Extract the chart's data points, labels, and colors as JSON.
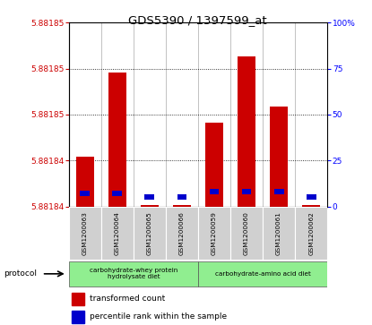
{
  "title": "GDS5390 / 1397599_at",
  "samples": [
    "GSM1200063",
    "GSM1200064",
    "GSM1200065",
    "GSM1200066",
    "GSM1200059",
    "GSM1200060",
    "GSM1200061",
    "GSM1200062"
  ],
  "transformed_counts": [
    5.881843,
    5.881848,
    5.8818401,
    5.8818401,
    5.881845,
    5.881849,
    5.881846,
    5.8818401
  ],
  "percentile_ranks": [
    7,
    7,
    5,
    5,
    8,
    8,
    8,
    5
  ],
  "y_min": 5.88184,
  "y_max": 5.881851,
  "pct_grid": [
    0,
    25,
    50,
    75,
    100
  ],
  "left_ytick_labels": [
    "5.88184",
    "5.88184",
    "5.88185",
    "5.88185",
    "5.88185"
  ],
  "right_ytick_labels": [
    "0",
    "25",
    "50",
    "75",
    "100%"
  ],
  "protocol_groups": [
    {
      "label": "carbohydrate-whey protein\nhydrolysate diet",
      "start": 0,
      "end": 4
    },
    {
      "label": "carbohydrate-amino acid diet",
      "start": 4,
      "end": 8
    }
  ],
  "bar_color": "#cc0000",
  "percentile_color": "#0000cc",
  "sample_box_color": "#d0d0d0",
  "protocol_box_color": "#90ee90",
  "legend_items": [
    {
      "color": "#cc0000",
      "label": "transformed count"
    },
    {
      "color": "#0000cc",
      "label": "percentile rank within the sample"
    }
  ]
}
